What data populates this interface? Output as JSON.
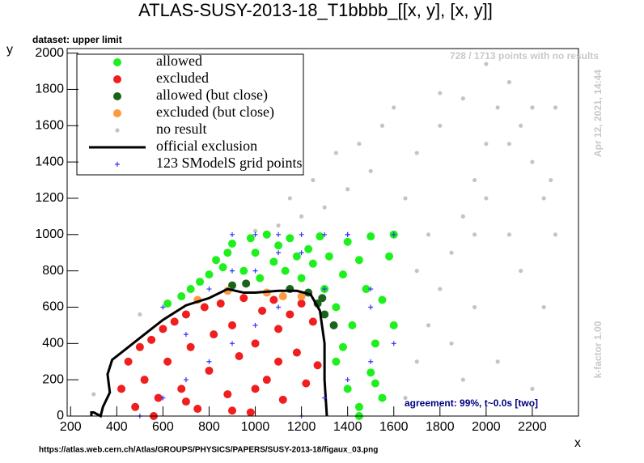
{
  "chart_data": {
    "type": "scatter",
    "title": "ATLAS-SUSY-2013-18_T1bbbb_[[x, y], [x, y]]",
    "subtitle": "dataset: upper limit",
    "x_label": "x",
    "y_label": "y",
    "annotations": [
      "728 / 1713 points with no results",
      "Apr 12, 2021, 14:44",
      "k-factor 1.00",
      "agreement: 99%, t~0.0s [two]"
    ],
    "source_url": "https://atlas.web.cern.ch/Atlas/GROUPS/PHYSICS/PAPERS/SUSY-2013-18/figaux_03.png",
    "xlim": [
      185,
      2400
    ],
    "ylim": [
      0,
      2025
    ],
    "xticks": [
      200,
      400,
      600,
      800,
      1000,
      1200,
      1400,
      1600,
      1800,
      2000,
      2200
    ],
    "yticks": [
      0,
      200,
      400,
      600,
      800,
      1000,
      1200,
      1400,
      1600,
      1800,
      2000
    ],
    "legend_position": "upper-left",
    "series": [
      {
        "name": "allowed",
        "color": "#1ef01e",
        "marker": "dot",
        "x": [
          620,
          680,
          720,
          760,
          800,
          830,
          860,
          880,
          900,
          950,
          980,
          1000,
          1020,
          1050,
          1080,
          1100,
          1130,
          1150,
          1180,
          1200,
          1230,
          1250,
          1280,
          1300,
          1320,
          1350,
          1380,
          1400,
          1420,
          1450,
          1480,
          1500,
          1520,
          1550,
          1580,
          1600,
          1350,
          1400,
          1450,
          1500,
          1550,
          1600,
          1380,
          1450,
          1520
        ],
        "values": [
          620,
          660,
          700,
          740,
          780,
          860,
          820,
          900,
          950,
          800,
          980,
          900,
          760,
          1000,
          850,
          940,
          800,
          980,
          880,
          760,
          920,
          840,
          990,
          700,
          880,
          600,
          780,
          960,
          500,
          860,
          700,
          990,
          400,
          640,
          880,
          1000,
          300,
          150,
          50,
          240,
          100,
          500,
          380,
          0,
          180
        ]
      },
      {
        "name": "excluded",
        "color": "#f01e1e",
        "marker": "dot",
        "x": [
          420,
          450,
          480,
          500,
          520,
          550,
          580,
          600,
          620,
          650,
          680,
          700,
          720,
          750,
          780,
          800,
          820,
          850,
          880,
          900,
          930,
          950,
          980,
          1000,
          1030,
          1050,
          1080,
          1100,
          1120,
          1150,
          1180,
          1200,
          1220,
          1250,
          1270,
          700,
          900,
          1100,
          560,
          1000
        ],
        "values": [
          150,
          300,
          50,
          380,
          200,
          420,
          100,
          480,
          300,
          520,
          150,
          560,
          380,
          40,
          600,
          250,
          450,
          620,
          120,
          500,
          330,
          650,
          20,
          400,
          580,
          200,
          640,
          480,
          90,
          560,
          350,
          620,
          180,
          520,
          280,
          80,
          30,
          300,
          0,
          150
        ]
      },
      {
        "name": "allowed (but close)",
        "color": "#1a641a",
        "marker": "dot",
        "x": [
          900,
          1150,
          1230,
          1270,
          1300,
          1290,
          1340,
          960
        ],
        "values": [
          720,
          700,
          680,
          620,
          560,
          650,
          500,
          730
        ]
      },
      {
        "name": "excluded (but close)",
        "color": "#ff9a3c",
        "marker": "dot",
        "x": [
          750,
          880,
          1050,
          1120,
          1200
        ],
        "values": [
          640,
          690,
          680,
          660,
          660
        ]
      },
      {
        "name": "no result",
        "color": "#c4c4c4",
        "marker": "small-dot",
        "x": [
          1650,
          1700,
          1750,
          1800,
          1850,
          1900,
          1950,
          2000,
          2050,
          2100,
          2150,
          2200,
          2250,
          2300,
          1650,
          1700,
          1750,
          1800,
          1850,
          1900,
          1950,
          2000,
          2050,
          2100,
          2150,
          2200,
          2250,
          2280,
          1200,
          1300,
          1400,
          1500,
          1100,
          1250,
          1350,
          1450,
          1550,
          1000,
          1150,
          1600,
          1700,
          1900,
          2100,
          2000,
          1800,
          2200,
          300,
          2300,
          1950,
          500
        ],
        "values": [
          100,
          300,
          500,
          700,
          900,
          1100,
          1300,
          1500,
          1700,
          1840,
          1600,
          1400,
          1200,
          1000,
          1200,
          800,
          1000,
          1600,
          400,
          200,
          600,
          1940,
          300,
          1000,
          800,
          150,
          600,
          1300,
          1100,
          1150,
          1250,
          1350,
          1050,
          1300,
          1450,
          1500,
          1600,
          1020,
          1200,
          1700,
          1450,
          1750,
          1500,
          1200,
          1780,
          1700,
          120,
          1700,
          1000,
          560
        ]
      },
      {
        "name": "official exclusion",
        "color": "#000000",
        "marker": "line",
        "x": [
          290,
          290,
          300,
          330,
          340,
          370,
          360,
          380,
          420,
          470,
          520,
          600,
          700,
          800,
          880,
          950,
          1000,
          1100,
          1180,
          1240,
          1280,
          1300,
          1300,
          1310
        ],
        "values": [
          0,
          20,
          20,
          0,
          50,
          130,
          230,
          310,
          350,
          400,
          450,
          530,
          610,
          650,
          700,
          680,
          680,
          690,
          690,
          670,
          580,
          400,
          200,
          0
        ]
      },
      {
        "name": "123 SModelS grid points",
        "color": "#3333ff",
        "marker": "plus",
        "x": [
          500,
          600,
          700,
          800,
          900,
          1000,
          1100,
          1200,
          1300,
          1400,
          1500,
          1600,
          600,
          800,
          1000,
          1200,
          1400,
          1600,
          700,
          900,
          1100,
          1300,
          1500,
          900,
          1000,
          1100,
          1200,
          1300,
          1400,
          1500
        ],
        "values": [
          0,
          100,
          200,
          300,
          400,
          500,
          600,
          0,
          100,
          200,
          300,
          400,
          600,
          700,
          800,
          900,
          1000,
          1000,
          450,
          800,
          900,
          700,
          600,
          1000,
          1000,
          1000,
          1000,
          1000,
          1000,
          700
        ]
      }
    ]
  }
}
